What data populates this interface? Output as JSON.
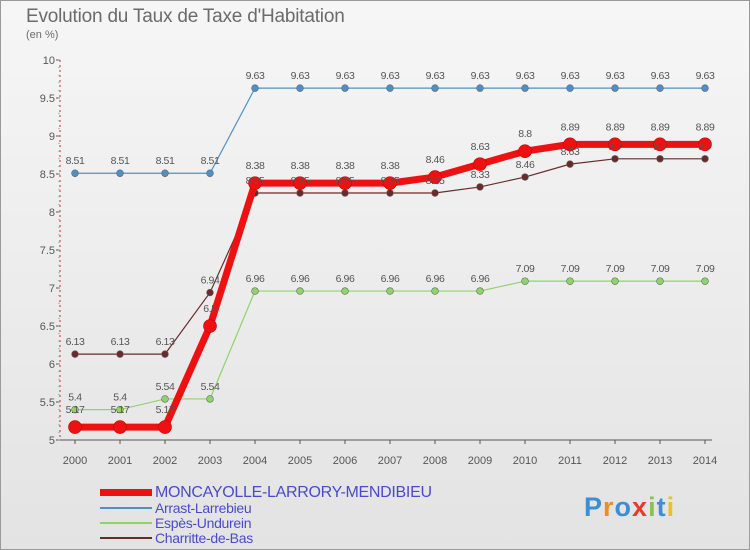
{
  "chart_data": {
    "type": "line",
    "title": "Evolution du Taux de Taxe d'Habitation",
    "unit_label": "(en %)",
    "categories": [
      "2000",
      "2001",
      "2002",
      "2003",
      "2004",
      "2005",
      "2006",
      "2007",
      "2008",
      "2009",
      "2010",
      "2011",
      "2012",
      "2013",
      "2014"
    ],
    "ylim": [
      5,
      10
    ],
    "yticks": [
      "5",
      "5.5",
      "6",
      "6.5",
      "7",
      "7.5",
      "8",
      "8.5",
      "9",
      "9.5",
      "10"
    ],
    "grid": false,
    "series": [
      {
        "name": "Arrast-Larrebieu",
        "color": "#4f8fc8",
        "width": 1.2,
        "marker": 3.4,
        "values": [
          8.51,
          8.51,
          8.51,
          8.51,
          9.63,
          9.63,
          9.63,
          9.63,
          9.63,
          9.63,
          9.63,
          9.63,
          9.63,
          9.63,
          9.63
        ],
        "labels": [
          "8.51",
          "8.51",
          "8.51",
          "8.51",
          "9.63",
          "9.63",
          "9.63",
          "9.63",
          "9.63",
          "9.63",
          "9.63",
          "9.63",
          "9.63",
          "9.63",
          "9.63"
        ],
        "label_offsets": [
          -9,
          -9,
          -9,
          -9,
          -9,
          -9,
          -9,
          -9,
          -9,
          -9,
          -9,
          -9,
          -9,
          -9,
          -9
        ]
      },
      {
        "name": "Espès-Undurein",
        "color": "#8fd46a",
        "width": 1.2,
        "marker": 3.4,
        "values": [
          5.4,
          5.4,
          5.54,
          5.54,
          6.96,
          6.96,
          6.96,
          6.96,
          6.96,
          6.96,
          7.09,
          7.09,
          7.09,
          7.09,
          7.09
        ],
        "labels": [
          "5.4",
          "5.4",
          "5.54",
          "5.54",
          "6.96",
          "6.96",
          "6.96",
          "6.96",
          "6.96",
          "6.96",
          "7.09",
          "7.09",
          "7.09",
          "7.09",
          "7.09"
        ],
        "label_offsets": [
          -9,
          -9,
          -9,
          -9,
          -9,
          -9,
          -9,
          -9,
          -9,
          -9,
          -9,
          -9,
          -9,
          -9,
          -9
        ]
      },
      {
        "name": "Charritte-de-Bas",
        "color": "#6b2a2a",
        "width": 1.2,
        "marker": 3.4,
        "values": [
          6.13,
          6.13,
          6.13,
          6.94,
          8.25,
          8.25,
          8.25,
          8.25,
          8.25,
          8.33,
          8.46,
          8.63,
          8.7,
          8.7,
          8.7
        ],
        "labels": [
          "6.13",
          "6.13",
          "6.13",
          "6.94",
          "8.25",
          "8.25",
          "8.25",
          "8.25",
          "8.25",
          "8.33",
          "8.46",
          "8.63",
          "8.7",
          "8.7",
          "8.7"
        ],
        "label_offsets": [
          -9,
          -9,
          -9,
          -9,
          -9,
          -9,
          -9,
          -9,
          -9,
          -9,
          -9,
          -9,
          -9,
          -9,
          -9
        ]
      },
      {
        "name": "MONCAYOLLE-LARRORY-MENDIBIEU",
        "color": "#ee1111",
        "width": 7,
        "marker": 6.5,
        "values": [
          5.17,
          5.17,
          5.17,
          6.5,
          8.38,
          8.38,
          8.38,
          8.38,
          8.46,
          8.63,
          8.8,
          8.89,
          8.89,
          8.89,
          8.89
        ],
        "labels": [
          "5.17",
          "5.17",
          "5.17",
          "6.5",
          "8.38",
          "8.38",
          "8.38",
          "8.38",
          "8.46",
          "8.63",
          "8.8",
          "8.89",
          "8.89",
          "8.89",
          "8.89"
        ],
        "label_offsets": [
          -14,
          -14,
          -14,
          -14,
          -14,
          -14,
          -14,
          -14,
          -14,
          -14,
          -14,
          -14,
          -14,
          -14,
          -14
        ]
      }
    ],
    "legend": [
      {
        "name": "MONCAYOLLE-LARRORY-MENDIBIEU",
        "color": "#ee1111",
        "big": true
      },
      {
        "name": "Arrast-Larrebieu",
        "color": "#4f8fc8",
        "big": false
      },
      {
        "name": "Espès-Undurein",
        "color": "#8fd46a",
        "big": false
      },
      {
        "name": "Charritte-de-Bas",
        "color": "#6b2a2a",
        "big": false
      }
    ]
  },
  "logo": {
    "letters": [
      "P",
      "r",
      "o",
      "x",
      "i",
      "t",
      "i"
    ],
    "colors": [
      "#3c8fd6",
      "#f28c1e",
      "#3c8fd6",
      "#e63a2f",
      "#8bc34a",
      "#3c8fd6",
      "#f2c01e"
    ]
  }
}
